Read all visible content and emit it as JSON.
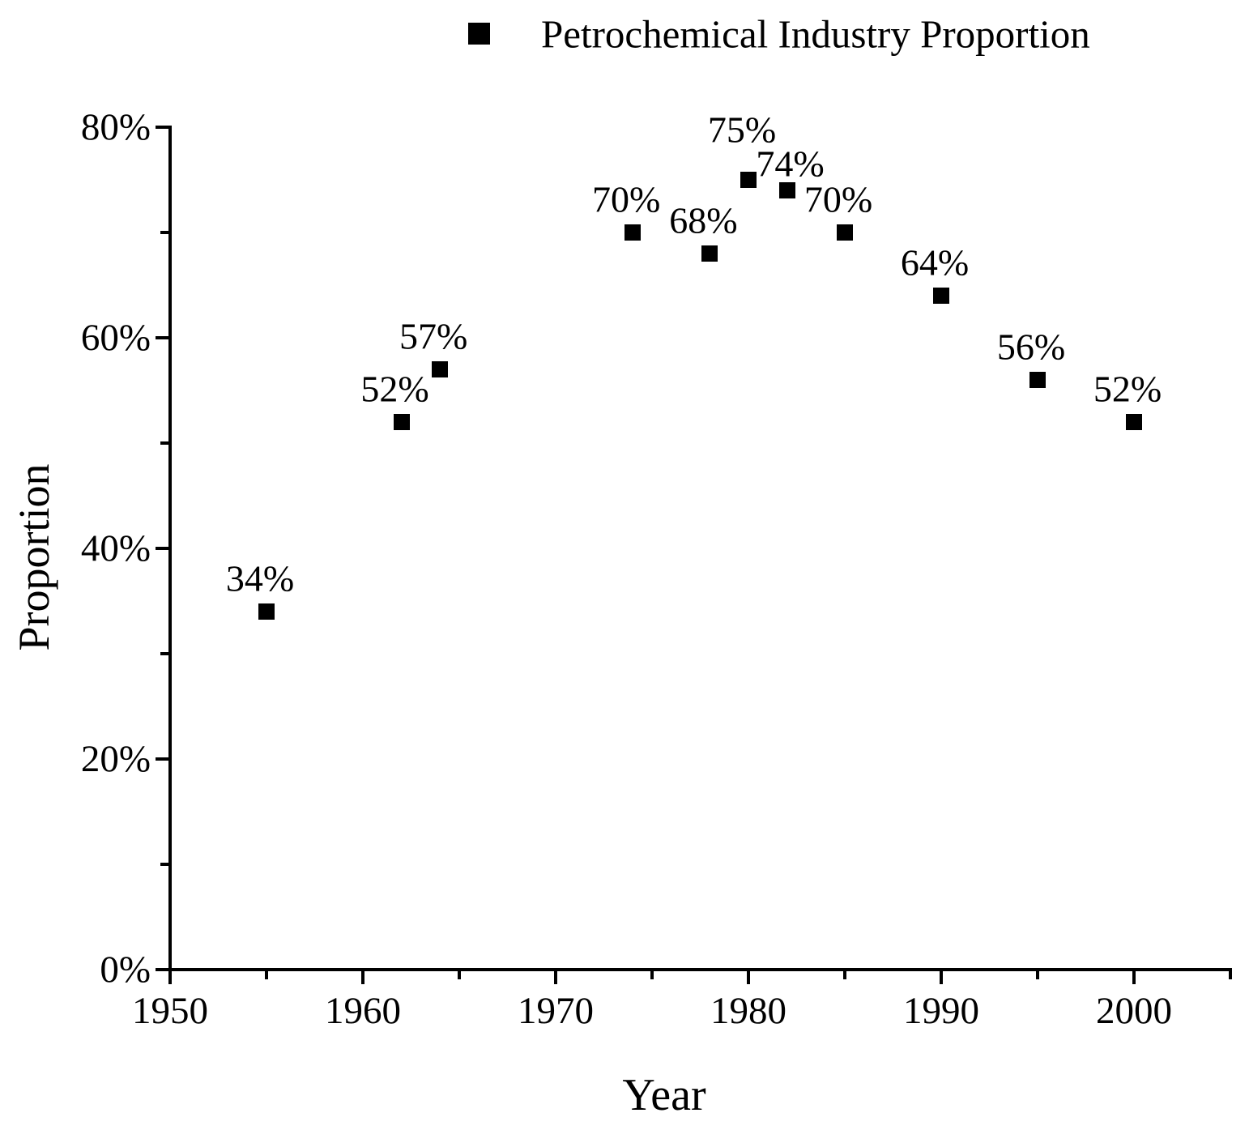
{
  "chart_data": {
    "type": "scatter",
    "title": "",
    "legend_label": "Petrochemical Industry Proportion",
    "legend_position": "top-center",
    "marker_style": "filled-square",
    "marker_color": "#000000",
    "background_color": "#ffffff",
    "xlabel": "Year",
    "ylabel": "Proportion",
    "grid": false,
    "x_axis": {
      "range": [
        1950,
        2005
      ],
      "major_ticks": [
        1950,
        1960,
        1970,
        1980,
        1990,
        2000
      ],
      "major_tick_labels": [
        "1950",
        "1960",
        "1970",
        "1980",
        "1990",
        "2000"
      ],
      "minor_ticks": [
        1955,
        1965,
        1975,
        1985,
        1995,
        2005
      ]
    },
    "y_axis": {
      "range": [
        0,
        80
      ],
      "major_ticks": [
        0,
        20,
        40,
        60,
        80
      ],
      "major_tick_labels": [
        "0%",
        "20%",
        "40%",
        "60%",
        "80%"
      ],
      "minor_ticks": [
        10,
        30,
        50,
        70
      ],
      "tick_label_suffix": "%"
    },
    "label_offset_default": [
      -8,
      -41
    ],
    "points": [
      {
        "year": 1955,
        "value": 34,
        "label": "34%"
      },
      {
        "year": 1962,
        "value": 52,
        "label": "52%"
      },
      {
        "year": 1964,
        "value": 57,
        "label": "57%"
      },
      {
        "year": 1974,
        "value": 70,
        "label": "70%"
      },
      {
        "year": 1978,
        "value": 68,
        "label": "68%"
      },
      {
        "year": 1980,
        "value": 75,
        "label": "75%",
        "label_offset": [
          -8,
          -62
        ]
      },
      {
        "year": 1982,
        "value": 74,
        "label": "74%",
        "label_offset": [
          4,
          -33
        ]
      },
      {
        "year": 1985,
        "value": 70,
        "label": "70%"
      },
      {
        "year": 1990,
        "value": 64,
        "label": "64%"
      },
      {
        "year": 1995,
        "value": 56,
        "label": "56%"
      },
      {
        "year": 2000,
        "value": 52,
        "label": "52%"
      }
    ]
  }
}
